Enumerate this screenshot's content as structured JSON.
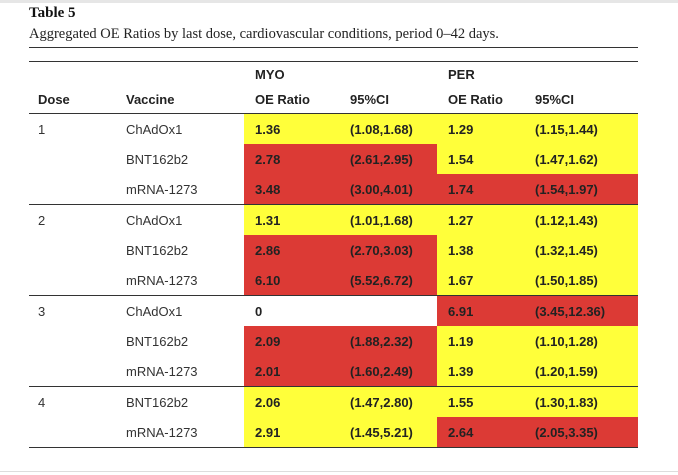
{
  "table": {
    "label": "Table 5",
    "caption": "Aggregated OE Ratios by last dose, cardiovascular conditions, period 0–42 days.",
    "groups": [
      "MYO",
      "PER"
    ],
    "columns": [
      "Dose",
      "Vaccine",
      "OE Ratio",
      "95%CI",
      "OE Ratio",
      "95%CI"
    ],
    "colors": {
      "yellow": "#ffff3a",
      "red": "#dc3a35"
    },
    "doses": [
      {
        "dose": "1",
        "rows": [
          {
            "vaccine": "ChAdOx1",
            "myo_oe": "1.36",
            "myo_ci": "(1.08,1.68)",
            "per_oe": "1.29",
            "per_ci": "(1.15,1.44)",
            "myo_color": "yellow",
            "per_color": "yellow"
          },
          {
            "vaccine": "BNT162b2",
            "myo_oe": "2.78",
            "myo_ci": "(2.61,2.95)",
            "per_oe": "1.54",
            "per_ci": "(1.47,1.62)",
            "myo_color": "red",
            "per_color": "yellow"
          },
          {
            "vaccine": "mRNA-1273",
            "myo_oe": "3.48",
            "myo_ci": "(3.00,4.01)",
            "per_oe": "1.74",
            "per_ci": "(1.54,1.97)",
            "myo_color": "red",
            "per_color": "red"
          }
        ]
      },
      {
        "dose": "2",
        "rows": [
          {
            "vaccine": "ChAdOx1",
            "myo_oe": "1.31",
            "myo_ci": "(1.01,1.68)",
            "per_oe": "1.27",
            "per_ci": "(1.12,1.43)",
            "myo_color": "yellow",
            "per_color": "yellow"
          },
          {
            "vaccine": "BNT162b2",
            "myo_oe": "2.86",
            "myo_ci": "(2.70,3.03)",
            "per_oe": "1.38",
            "per_ci": "(1.32,1.45)",
            "myo_color": "red",
            "per_color": "yellow"
          },
          {
            "vaccine": "mRNA-1273",
            "myo_oe": "6.10",
            "myo_ci": "(5.52,6.72)",
            "per_oe": "1.67",
            "per_ci": "(1.50,1.85)",
            "myo_color": "red",
            "per_color": "yellow"
          }
        ]
      },
      {
        "dose": "3",
        "rows": [
          {
            "vaccine": "ChAdOx1",
            "myo_oe": "0",
            "myo_ci": "",
            "per_oe": "6.91",
            "per_ci": "(3.45,12.36)",
            "myo_color": "white",
            "per_color": "red"
          },
          {
            "vaccine": "BNT162b2",
            "myo_oe": "2.09",
            "myo_ci": "(1.88,2.32)",
            "per_oe": "1.19",
            "per_ci": "(1.10,1.28)",
            "myo_color": "red",
            "per_color": "yellow"
          },
          {
            "vaccine": "mRNA-1273",
            "myo_oe": "2.01",
            "myo_ci": "(1.60,2.49)",
            "per_oe": "1.39",
            "per_ci": "(1.20,1.59)",
            "myo_color": "red",
            "per_color": "yellow"
          }
        ]
      },
      {
        "dose": "4",
        "rows": [
          {
            "vaccine": "BNT162b2",
            "myo_oe": "2.06",
            "myo_ci": "(1.47,2.80)",
            "per_oe": "1.55",
            "per_ci": "(1.30,1.83)",
            "myo_color": "yellow",
            "per_color": "yellow"
          },
          {
            "vaccine": "mRNA-1273",
            "myo_oe": "2.91",
            "myo_ci": "(1.45,5.21)",
            "per_oe": "2.64",
            "per_ci": "(2.05,3.35)",
            "myo_color": "yellow",
            "per_color": "red"
          }
        ]
      }
    ]
  }
}
